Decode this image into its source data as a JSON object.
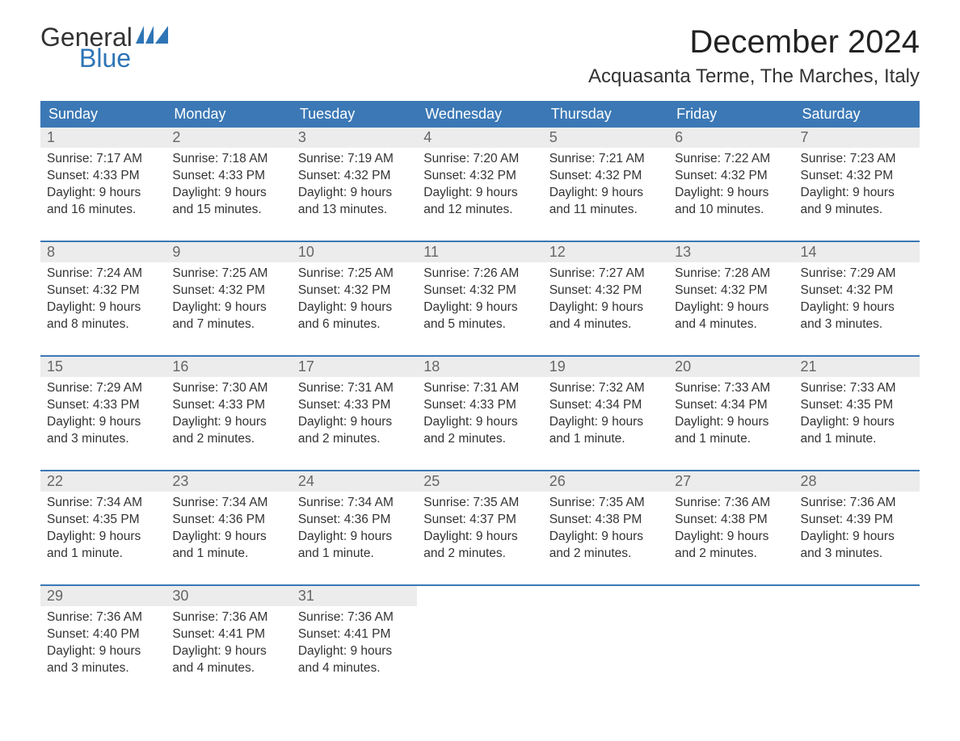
{
  "logo": {
    "text1": "General",
    "text2": "Blue",
    "flag_color": "#2e75b6"
  },
  "title": "December 2024",
  "location": "Acquasanta Terme, The Marches, Italy",
  "colors": {
    "header_bg": "#3b78b5",
    "header_text": "#ffffff",
    "daynum_bg": "#ececec",
    "daynum_text": "#666666",
    "body_text": "#333333",
    "week_border": "#3b78b5"
  },
  "day_headers": [
    "Sunday",
    "Monday",
    "Tuesday",
    "Wednesday",
    "Thursday",
    "Friday",
    "Saturday"
  ],
  "weeks": [
    [
      {
        "n": "1",
        "sunrise": "Sunrise: 7:17 AM",
        "sunset": "Sunset: 4:33 PM",
        "d1": "Daylight: 9 hours",
        "d2": "and 16 minutes."
      },
      {
        "n": "2",
        "sunrise": "Sunrise: 7:18 AM",
        "sunset": "Sunset: 4:33 PM",
        "d1": "Daylight: 9 hours",
        "d2": "and 15 minutes."
      },
      {
        "n": "3",
        "sunrise": "Sunrise: 7:19 AM",
        "sunset": "Sunset: 4:32 PM",
        "d1": "Daylight: 9 hours",
        "d2": "and 13 minutes."
      },
      {
        "n": "4",
        "sunrise": "Sunrise: 7:20 AM",
        "sunset": "Sunset: 4:32 PM",
        "d1": "Daylight: 9 hours",
        "d2": "and 12 minutes."
      },
      {
        "n": "5",
        "sunrise": "Sunrise: 7:21 AM",
        "sunset": "Sunset: 4:32 PM",
        "d1": "Daylight: 9 hours",
        "d2": "and 11 minutes."
      },
      {
        "n": "6",
        "sunrise": "Sunrise: 7:22 AM",
        "sunset": "Sunset: 4:32 PM",
        "d1": "Daylight: 9 hours",
        "d2": "and 10 minutes."
      },
      {
        "n": "7",
        "sunrise": "Sunrise: 7:23 AM",
        "sunset": "Sunset: 4:32 PM",
        "d1": "Daylight: 9 hours",
        "d2": "and 9 minutes."
      }
    ],
    [
      {
        "n": "8",
        "sunrise": "Sunrise: 7:24 AM",
        "sunset": "Sunset: 4:32 PM",
        "d1": "Daylight: 9 hours",
        "d2": "and 8 minutes."
      },
      {
        "n": "9",
        "sunrise": "Sunrise: 7:25 AM",
        "sunset": "Sunset: 4:32 PM",
        "d1": "Daylight: 9 hours",
        "d2": "and 7 minutes."
      },
      {
        "n": "10",
        "sunrise": "Sunrise: 7:25 AM",
        "sunset": "Sunset: 4:32 PM",
        "d1": "Daylight: 9 hours",
        "d2": "and 6 minutes."
      },
      {
        "n": "11",
        "sunrise": "Sunrise: 7:26 AM",
        "sunset": "Sunset: 4:32 PM",
        "d1": "Daylight: 9 hours",
        "d2": "and 5 minutes."
      },
      {
        "n": "12",
        "sunrise": "Sunrise: 7:27 AM",
        "sunset": "Sunset: 4:32 PM",
        "d1": "Daylight: 9 hours",
        "d2": "and 4 minutes."
      },
      {
        "n": "13",
        "sunrise": "Sunrise: 7:28 AM",
        "sunset": "Sunset: 4:32 PM",
        "d1": "Daylight: 9 hours",
        "d2": "and 4 minutes."
      },
      {
        "n": "14",
        "sunrise": "Sunrise: 7:29 AM",
        "sunset": "Sunset: 4:32 PM",
        "d1": "Daylight: 9 hours",
        "d2": "and 3 minutes."
      }
    ],
    [
      {
        "n": "15",
        "sunrise": "Sunrise: 7:29 AM",
        "sunset": "Sunset: 4:33 PM",
        "d1": "Daylight: 9 hours",
        "d2": "and 3 minutes."
      },
      {
        "n": "16",
        "sunrise": "Sunrise: 7:30 AM",
        "sunset": "Sunset: 4:33 PM",
        "d1": "Daylight: 9 hours",
        "d2": "and 2 minutes."
      },
      {
        "n": "17",
        "sunrise": "Sunrise: 7:31 AM",
        "sunset": "Sunset: 4:33 PM",
        "d1": "Daylight: 9 hours",
        "d2": "and 2 minutes."
      },
      {
        "n": "18",
        "sunrise": "Sunrise: 7:31 AM",
        "sunset": "Sunset: 4:33 PM",
        "d1": "Daylight: 9 hours",
        "d2": "and 2 minutes."
      },
      {
        "n": "19",
        "sunrise": "Sunrise: 7:32 AM",
        "sunset": "Sunset: 4:34 PM",
        "d1": "Daylight: 9 hours",
        "d2": "and 1 minute."
      },
      {
        "n": "20",
        "sunrise": "Sunrise: 7:33 AM",
        "sunset": "Sunset: 4:34 PM",
        "d1": "Daylight: 9 hours",
        "d2": "and 1 minute."
      },
      {
        "n": "21",
        "sunrise": "Sunrise: 7:33 AM",
        "sunset": "Sunset: 4:35 PM",
        "d1": "Daylight: 9 hours",
        "d2": "and 1 minute."
      }
    ],
    [
      {
        "n": "22",
        "sunrise": "Sunrise: 7:34 AM",
        "sunset": "Sunset: 4:35 PM",
        "d1": "Daylight: 9 hours",
        "d2": "and 1 minute."
      },
      {
        "n": "23",
        "sunrise": "Sunrise: 7:34 AM",
        "sunset": "Sunset: 4:36 PM",
        "d1": "Daylight: 9 hours",
        "d2": "and 1 minute."
      },
      {
        "n": "24",
        "sunrise": "Sunrise: 7:34 AM",
        "sunset": "Sunset: 4:36 PM",
        "d1": "Daylight: 9 hours",
        "d2": "and 1 minute."
      },
      {
        "n": "25",
        "sunrise": "Sunrise: 7:35 AM",
        "sunset": "Sunset: 4:37 PM",
        "d1": "Daylight: 9 hours",
        "d2": "and 2 minutes."
      },
      {
        "n": "26",
        "sunrise": "Sunrise: 7:35 AM",
        "sunset": "Sunset: 4:38 PM",
        "d1": "Daylight: 9 hours",
        "d2": "and 2 minutes."
      },
      {
        "n": "27",
        "sunrise": "Sunrise: 7:36 AM",
        "sunset": "Sunset: 4:38 PM",
        "d1": "Daylight: 9 hours",
        "d2": "and 2 minutes."
      },
      {
        "n": "28",
        "sunrise": "Sunrise: 7:36 AM",
        "sunset": "Sunset: 4:39 PM",
        "d1": "Daylight: 9 hours",
        "d2": "and 3 minutes."
      }
    ],
    [
      {
        "n": "29",
        "sunrise": "Sunrise: 7:36 AM",
        "sunset": "Sunset: 4:40 PM",
        "d1": "Daylight: 9 hours",
        "d2": "and 3 minutes."
      },
      {
        "n": "30",
        "sunrise": "Sunrise: 7:36 AM",
        "sunset": "Sunset: 4:41 PM",
        "d1": "Daylight: 9 hours",
        "d2": "and 4 minutes."
      },
      {
        "n": "31",
        "sunrise": "Sunrise: 7:36 AM",
        "sunset": "Sunset: 4:41 PM",
        "d1": "Daylight: 9 hours",
        "d2": "and 4 minutes."
      },
      null,
      null,
      null,
      null
    ]
  ]
}
